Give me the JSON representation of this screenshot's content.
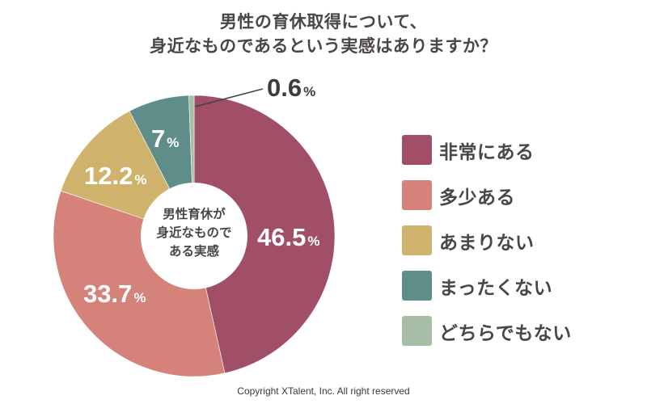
{
  "title": {
    "line1": "男性の育休取得について、",
    "line2": "身近なものであるという実感はありますか？"
  },
  "center_label": {
    "line1": "男性育休が",
    "line2": "身近なもので",
    "line3": "ある実感"
  },
  "labels": [
    {
      "num": "46.5",
      "unit": "%"
    },
    {
      "num": "33.7",
      "unit": "%"
    },
    {
      "num": "12.2",
      "unit": "%"
    },
    {
      "num": "7",
      "unit": "%"
    },
    {
      "num": "0.6",
      "unit": "%"
    }
  ],
  "legend": [
    {
      "label": "非常にある",
      "color": "#a04f67"
    },
    {
      "label": "多少ある",
      "color": "#d5827a"
    },
    {
      "label": "あまりない",
      "color": "#cfb36c"
    },
    {
      "label": "まったくない",
      "color": "#5f8e88"
    },
    {
      "label": "どちらでもない",
      "color": "#a7bca5"
    }
  ],
  "copyright": "Copyright XTalent, Inc. All right reserved",
  "chart_data": {
    "type": "pie",
    "title": "男性の育休取得について、身近なものであるという実感はありますか？",
    "center_text": "男性育休が身近なものである実感",
    "categories": [
      "非常にある",
      "多少ある",
      "あまりない",
      "まったくない",
      "どちらでもない"
    ],
    "values": [
      46.5,
      33.7,
      12.2,
      7,
      0.6
    ],
    "unit": "%",
    "colors": [
      "#a04f67",
      "#d5827a",
      "#cfb36c",
      "#5f8e88",
      "#a7bca5"
    ],
    "start_angle": "12 o'clock",
    "direction": "clockwise",
    "donut": true,
    "legend_position": "right"
  }
}
